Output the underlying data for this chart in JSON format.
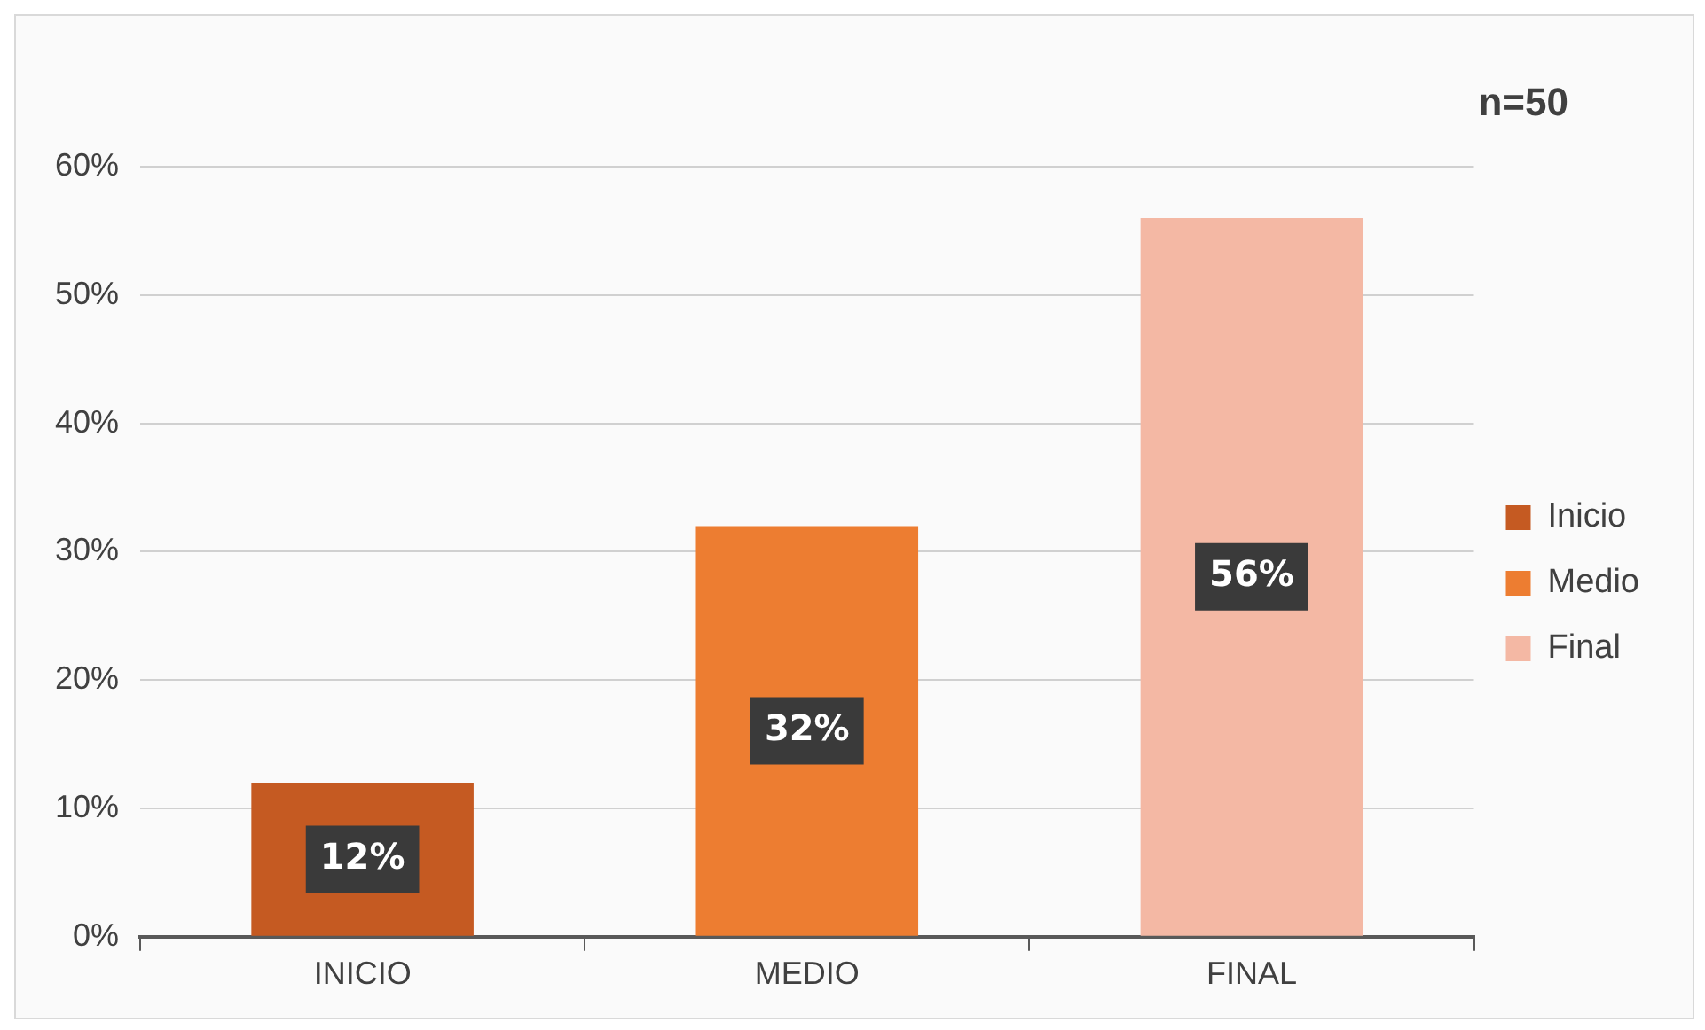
{
  "chart_data": {
    "type": "bar",
    "categories": [
      "INICIO",
      "MEDIO",
      "FINAL"
    ],
    "series": [
      {
        "name": "Inicio",
        "color": "#c55a22",
        "values": [
          12,
          null,
          null
        ],
        "value_labels": [
          "12%",
          null,
          null
        ]
      },
      {
        "name": "Medio",
        "color": "#ed7d31",
        "values": [
          null,
          32,
          null
        ],
        "value_labels": [
          null,
          "32%",
          null
        ]
      },
      {
        "name": "Final",
        "color": "#f4b8a4",
        "values": [
          null,
          null,
          56
        ],
        "value_labels": [
          null,
          null,
          "56%"
        ]
      }
    ],
    "ylim": [
      0,
      60
    ],
    "yticks": [
      {
        "value": 0,
        "label": "0%"
      },
      {
        "value": 10,
        "label": "10%"
      },
      {
        "value": 20,
        "label": "20%"
      },
      {
        "value": 30,
        "label": "30%"
      },
      {
        "value": 40,
        "label": "40%"
      },
      {
        "value": 50,
        "label": "50%"
      },
      {
        "value": 60,
        "label": "60%"
      }
    ],
    "grid": "y",
    "legend": "right",
    "annotations": [
      "n=50"
    ]
  }
}
